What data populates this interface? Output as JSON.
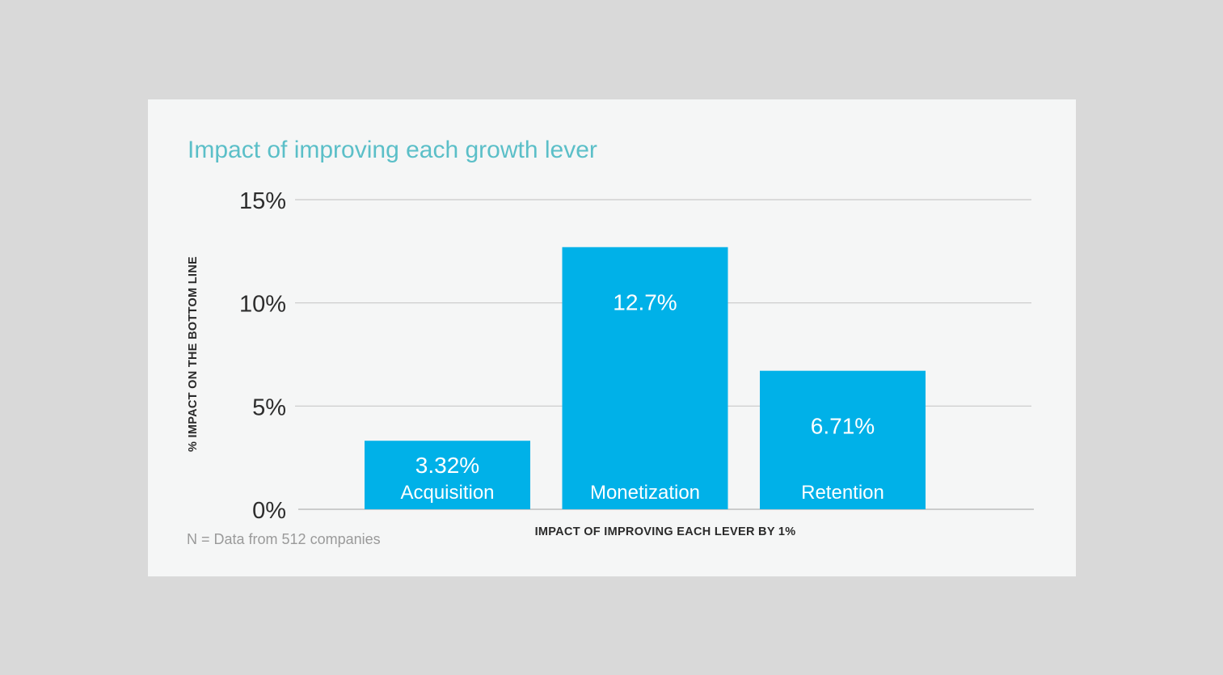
{
  "chart_data": {
    "type": "bar",
    "title": "Impact of improving each growth lever",
    "categories": [
      "Acquisition",
      "Monetization",
      "Retention"
    ],
    "values": [
      3.32,
      12.7,
      6.71
    ],
    "value_labels": [
      "3.32%",
      "12.7%",
      "6.71%"
    ],
    "ylim": [
      0,
      15
    ],
    "yticks": [
      0,
      5,
      10,
      15
    ],
    "ytick_labels": [
      "0%",
      "5%",
      "10%",
      "15%"
    ],
    "ylabel": "% IMPACT ON THE BOTTOM LINE",
    "xlabel": "IMPACT OF IMPROVING EACH LEVER BY 1%",
    "grid": true,
    "legend": "none"
  },
  "footnote": "N = Data from 512 companies",
  "colors": {
    "bar": "#00b1e8",
    "title": "#5bbfc8",
    "background": "#d9d9d9",
    "card": "#f5f6f6"
  }
}
